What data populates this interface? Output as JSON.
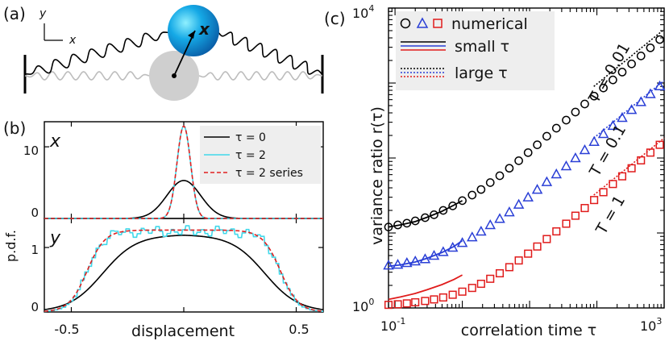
{
  "panel_labels": {
    "a": "(a)",
    "b": "(b)",
    "c": "(c)"
  },
  "panel_a": {
    "axis_y": "y",
    "axis_x": "x",
    "particle_label": "x"
  },
  "chart_data": [
    {
      "id": "b-top",
      "type": "line",
      "panel_tag": "x",
      "xlim": [
        -0.62,
        0.62
      ],
      "ylim": [
        0,
        13.5
      ],
      "yticks": [
        0,
        10
      ],
      "ytick_labels": [
        "0",
        "10"
      ],
      "xticks": [
        -0.5,
        0,
        0.5
      ],
      "series": [
        {
          "name": "τ = 0",
          "color": "#000000",
          "dash": "",
          "kind": "gauss",
          "amp": 5.3,
          "sigma": 0.075
        },
        {
          "name": "τ = 2",
          "color": "#40d8ea",
          "dash": "",
          "kind": "gauss",
          "amp": 12.9,
          "sigma": 0.03
        },
        {
          "name": "τ = 2 series",
          "color": "#e02020",
          "dash": "5,3",
          "kind": "gauss",
          "amp": 12.9,
          "sigma": 0.03
        }
      ],
      "legend": [
        {
          "label": "τ = 0",
          "color": "#000000",
          "dash": ""
        },
        {
          "label": "τ = 2",
          "color": "#40d8ea",
          "dash": ""
        },
        {
          "label": "τ = 2 series",
          "color": "#e02020",
          "dash": "5,3"
        }
      ],
      "legend_position": "top-right"
    },
    {
      "id": "b-bottom",
      "type": "line",
      "panel_tag": "y",
      "xlim": [
        -0.62,
        0.62
      ],
      "ylim": [
        0,
        1.45
      ],
      "yticks": [
        0,
        1
      ],
      "ytick_labels": [
        "0",
        "1"
      ],
      "xticks": [
        -0.5,
        0,
        0.5
      ],
      "xtick_labels": [
        "-0.5",
        "0.5"
      ],
      "xlabel": "displacement",
      "ylabel": "p.d.f.",
      "series": [
        {
          "name": "τ = 0",
          "color": "#000000",
          "dash": "",
          "kind": "flat",
          "plateau": 1.2,
          "edge": 0.36,
          "width": 0.075
        },
        {
          "name": "τ = 2",
          "color": "#40d8ea",
          "dash": "",
          "kind": "flat-noisy",
          "plateau": 1.25,
          "edge": 0.43,
          "width": 0.038
        },
        {
          "name": "τ = 2 series",
          "color": "#e02020",
          "dash": "5,3",
          "kind": "flat",
          "plateau": 1.27,
          "edge": 0.43,
          "width": 0.04
        }
      ]
    },
    {
      "id": "c",
      "type": "scatter",
      "scale": "log-log",
      "xlim": [
        0.08,
        1000
      ],
      "ylim": [
        1,
        10000
      ],
      "xtick_labels": [
        {
          "base": "10",
          "exp": "-1",
          "value": 0.1
        },
        {
          "base": "10",
          "exp": "3",
          "value": 1000
        }
      ],
      "ytick_labels": [
        {
          "base": "10",
          "exp": "0",
          "value": 1
        },
        {
          "base": "10",
          "exp": "4",
          "value": 10000
        }
      ],
      "xlabel": "correlation time τ",
      "ylabel": "variance ratio r(τ)",
      "series": [
        {
          "name": "T = 0.01",
          "marker": "circle",
          "color": "#000000",
          "x": [
            0.08,
            0.11,
            0.15,
            0.2,
            0.28,
            0.38,
            0.52,
            0.72,
            1,
            1.4,
            1.9,
            2.6,
            3.6,
            5,
            6.9,
            9.5,
            13,
            18,
            25,
            35,
            48,
            66,
            91,
            125,
            173,
            238,
            328,
            452,
            624,
            860
          ],
          "y": [
            12,
            12.8,
            13.5,
            14.5,
            16,
            17.5,
            20,
            23,
            27,
            32,
            38,
            47,
            58,
            73,
            92,
            118,
            150,
            195,
            250,
            320,
            410,
            525,
            670,
            860,
            1100,
            1400,
            1800,
            2300,
            2950,
            3800
          ]
        },
        {
          "name": "T = 0.1",
          "marker": "triangle",
          "color": "#2a3fd6",
          "x": [
            0.08,
            0.11,
            0.15,
            0.2,
            0.28,
            0.38,
            0.52,
            0.72,
            1,
            1.4,
            1.9,
            2.6,
            3.6,
            5,
            6.9,
            9.5,
            13,
            18,
            25,
            35,
            48,
            66,
            91,
            125,
            173,
            238,
            328,
            452,
            624,
            860
          ],
          "y": [
            3.7,
            3.8,
            4.0,
            4.2,
            4.5,
            5.0,
            5.6,
            6.4,
            7.4,
            8.8,
            10.5,
            12.8,
            15.5,
            19,
            24,
            30,
            38,
            48,
            61,
            78,
            100,
            128,
            165,
            210,
            270,
            345,
            440,
            560,
            715,
            910
          ]
        },
        {
          "name": "T = 1",
          "marker": "square",
          "color": "#e01b1b",
          "x": [
            0.08,
            0.11,
            0.15,
            0.2,
            0.28,
            0.38,
            0.52,
            0.72,
            1,
            1.4,
            1.9,
            2.6,
            3.6,
            5,
            6.9,
            9.5,
            13,
            18,
            25,
            35,
            48,
            66,
            91,
            125,
            173,
            238,
            328,
            452,
            624,
            860
          ],
          "y": [
            1.1,
            1.12,
            1.15,
            1.19,
            1.24,
            1.3,
            1.38,
            1.5,
            1.65,
            1.85,
            2.1,
            2.45,
            2.9,
            3.5,
            4.3,
            5.3,
            6.6,
            8.3,
            10.5,
            13.3,
            17,
            21.5,
            27.5,
            35,
            45,
            57,
            73,
            93,
            118,
            150
          ]
        }
      ],
      "small_tau": [
        {
          "name": "small τ T=0.01",
          "color": "#000000",
          "x": [
            0.08,
            0.12,
            0.2,
            0.3,
            0.5,
            0.75,
            1
          ],
          "y": [
            12,
            12.8,
            14.2,
            16.2,
            19.5,
            23.5,
            27
          ]
        },
        {
          "name": "small τ T=0.1",
          "color": "#2a3fd6",
          "x": [
            0.08,
            0.12,
            0.2,
            0.3,
            0.5,
            0.75,
            1
          ],
          "y": [
            3.6,
            3.75,
            4.1,
            4.6,
            5.5,
            6.6,
            7.9
          ]
        },
        {
          "name": "small τ T=1",
          "color": "#e01b1b",
          "x": [
            0.08,
            0.12,
            0.2,
            0.3,
            0.5,
            0.75,
            1
          ],
          "y": [
            1.3,
            1.4,
            1.56,
            1.75,
            2.05,
            2.4,
            2.75
          ]
        }
      ],
      "large_tau": [
        {
          "name": "large τ T=0.01",
          "color": "#000000",
          "x": [
            90,
            1000
          ],
          "y": [
            900,
            5200
          ]
        },
        {
          "name": "large τ T=0.1",
          "color": "#2a3fd6",
          "x": [
            90,
            1000
          ],
          "y": [
            185,
            1080
          ]
        },
        {
          "name": "large τ T=1",
          "color": "#e01b1b",
          "x": [
            90,
            1000
          ],
          "y": [
            32,
            185
          ]
        }
      ],
      "legend": {
        "numerical": "numerical",
        "small": "small τ",
        "large": "large τ"
      },
      "annotations": [
        {
          "text": "T = 0.01",
          "color": "#000000"
        },
        {
          "text": "T = 0.1",
          "color": "#000000"
        },
        {
          "text": "T = 1",
          "color": "#000000"
        }
      ]
    }
  ]
}
